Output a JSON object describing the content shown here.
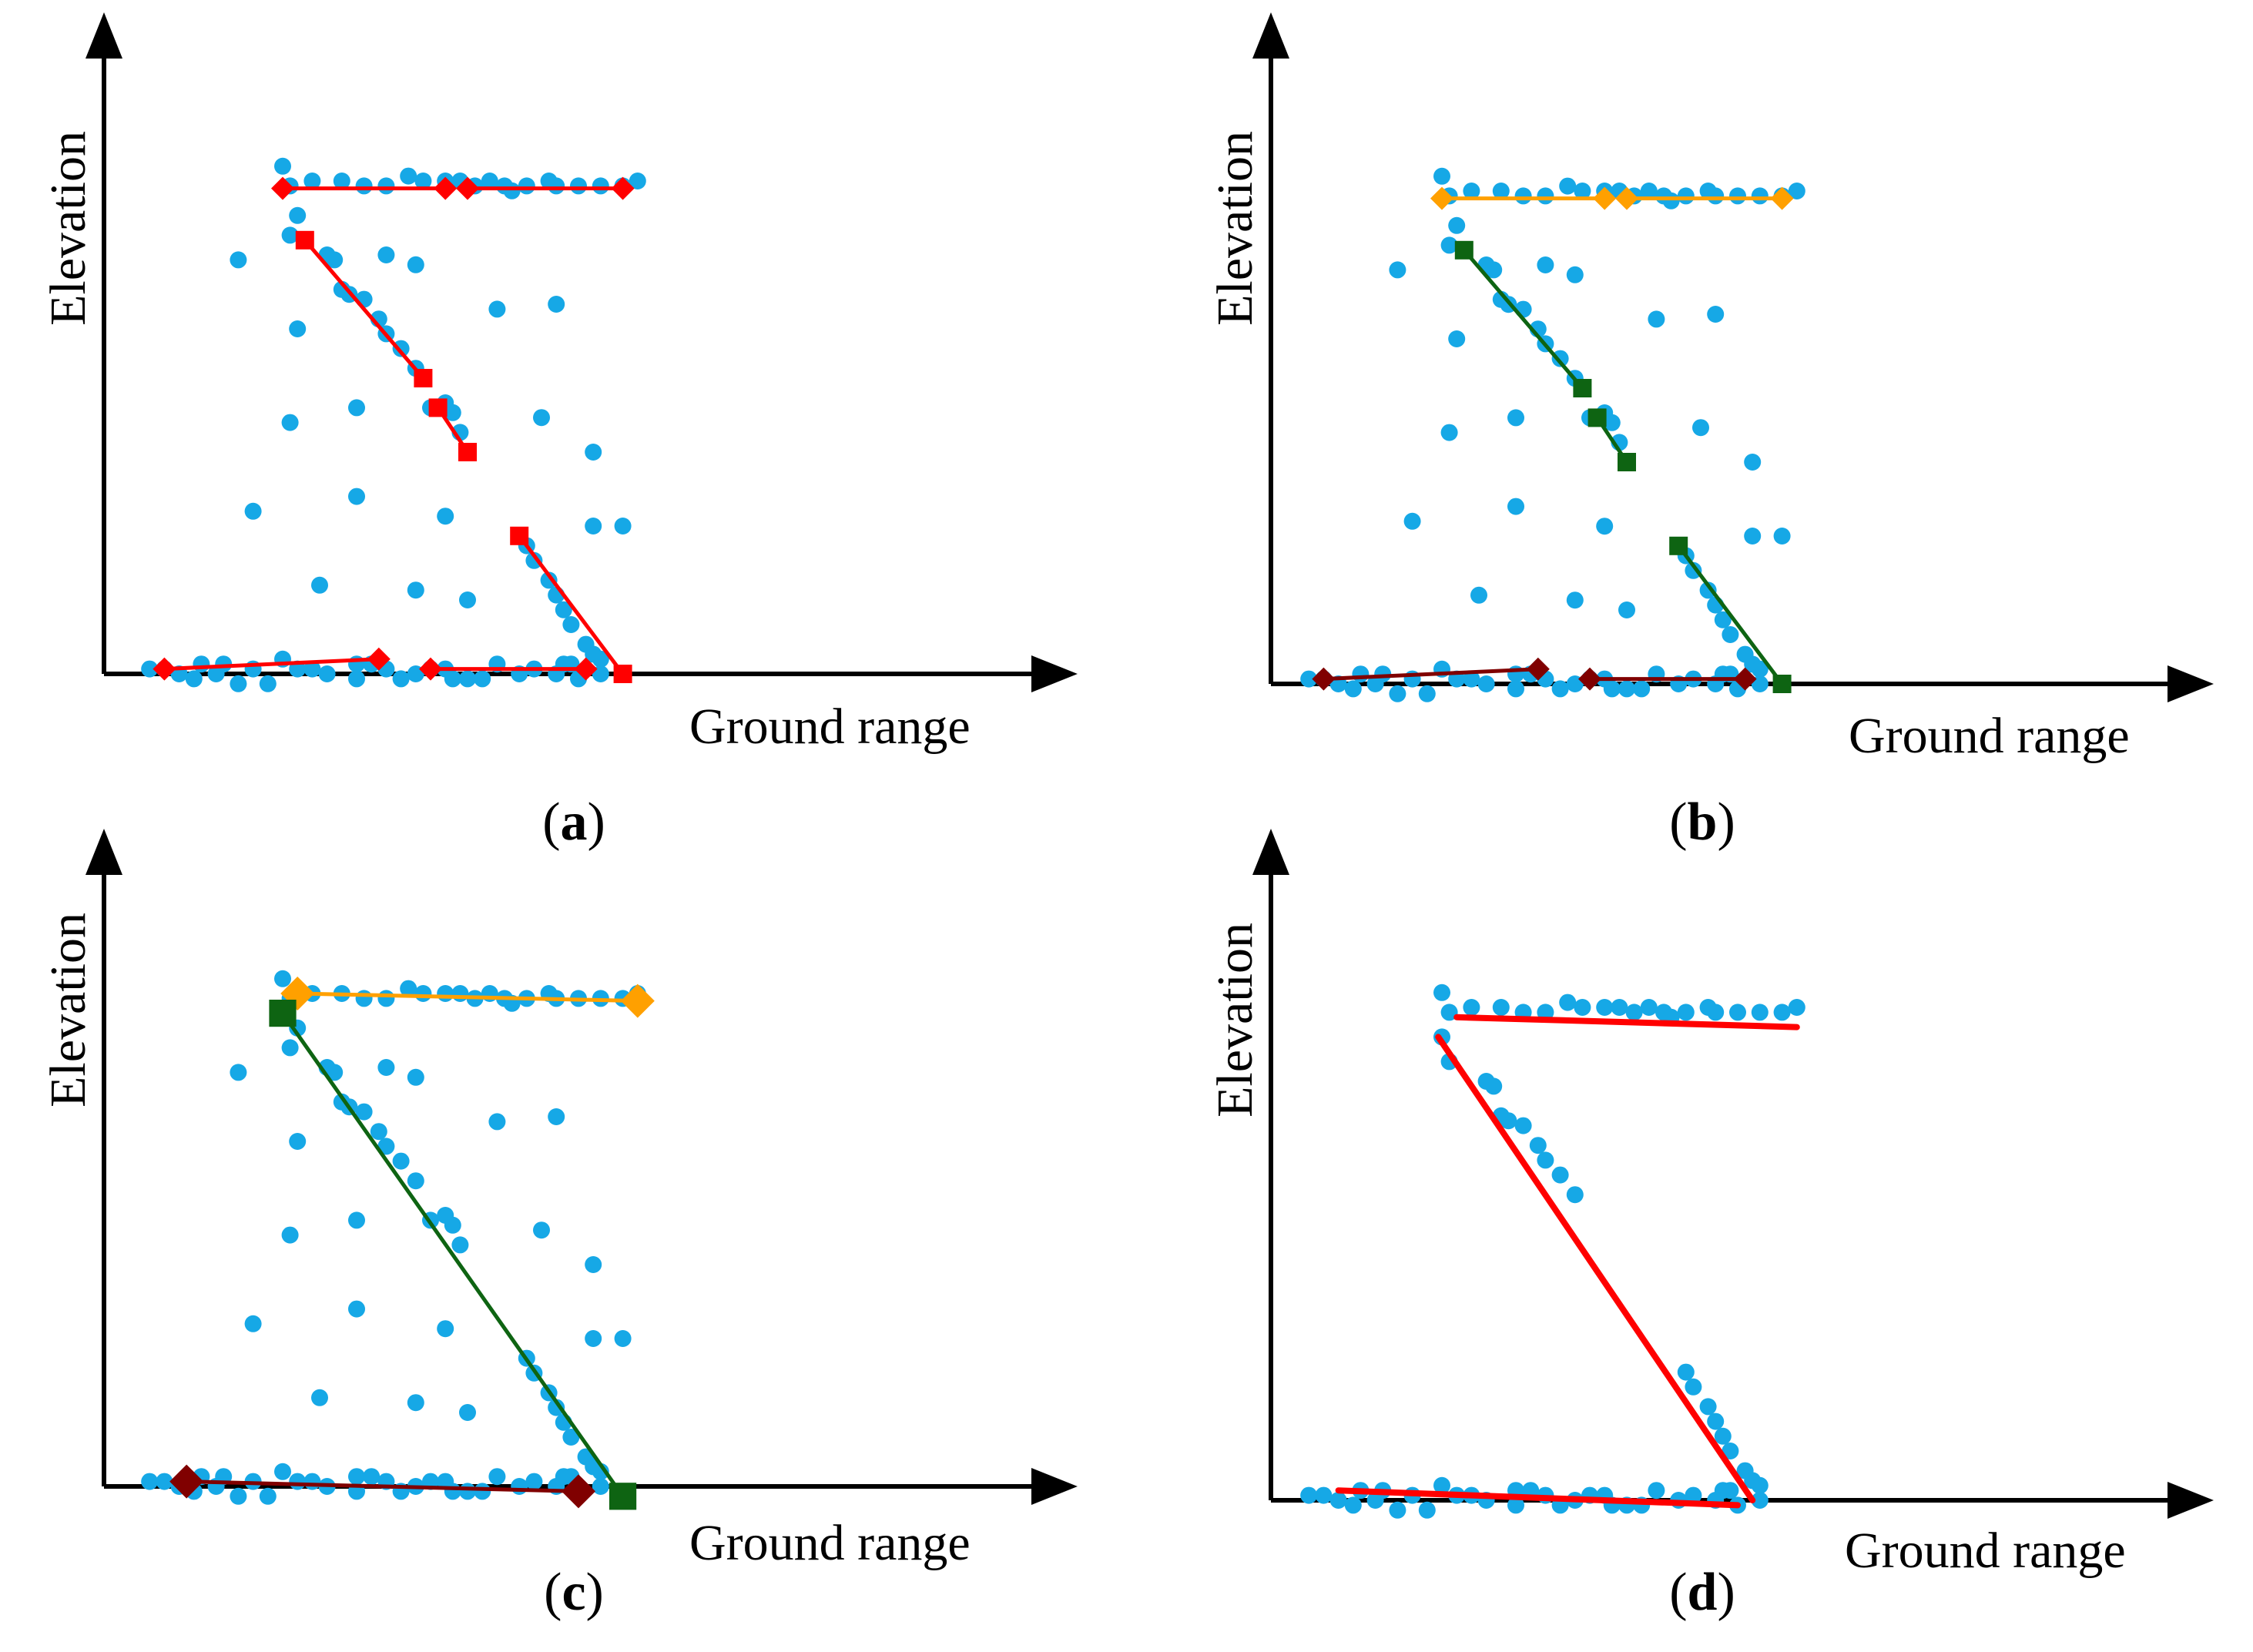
{
  "colors": {
    "points": "#16A8E6",
    "red": "#FF0000",
    "orange": "#FFA000",
    "green": "#0E6412",
    "dark_red": "#800000",
    "axis": "#000000"
  },
  "axes": {
    "x_label": "Ground range",
    "y_label": "Elevation"
  },
  "panels": [
    {
      "id": "a",
      "caption_open": "(",
      "caption_letter": "a",
      "caption_close": ")",
      "points_set": "full",
      "segments": [
        {
          "from": [
            0.2,
            0.985
          ],
          "to": [
            0.42,
            0.985
          ],
          "color": "red",
          "marker": "diamond",
          "size": "small"
        },
        {
          "from": [
            0.45,
            0.985
          ],
          "to": [
            0.66,
            0.985
          ],
          "color": "red",
          "marker": "diamond",
          "size": "small"
        },
        {
          "from": [
            0.23,
            0.88
          ],
          "to": [
            0.39,
            0.6
          ],
          "color": "red",
          "marker": "square",
          "size": "small"
        },
        {
          "from": [
            0.41,
            0.54
          ],
          "to": [
            0.45,
            0.45
          ],
          "color": "red",
          "marker": "square",
          "size": "small"
        },
        {
          "from": [
            0.52,
            0.28
          ],
          "to": [
            0.66,
            0.0
          ],
          "color": "red",
          "marker": "square",
          "size": "small"
        },
        {
          "from": [
            0.04,
            0.01
          ],
          "to": [
            0.33,
            0.03
          ],
          "color": "red",
          "marker": "diamond",
          "size": "small"
        },
        {
          "from": [
            0.4,
            0.01
          ],
          "to": [
            0.61,
            0.01
          ],
          "color": "red",
          "marker": "diamond",
          "size": "small"
        }
      ]
    },
    {
      "id": "b",
      "caption_open": "(",
      "caption_letter": "b",
      "caption_close": ")",
      "points_set": "full",
      "segments": [
        {
          "from": [
            0.2,
            0.985
          ],
          "to": [
            0.42,
            0.985
          ],
          "color": "orange",
          "marker": "diamond",
          "size": "small"
        },
        {
          "from": [
            0.45,
            0.985
          ],
          "to": [
            0.66,
            0.985
          ],
          "color": "orange",
          "marker": "diamond",
          "size": "small"
        },
        {
          "from": [
            0.23,
            0.88
          ],
          "to": [
            0.39,
            0.6
          ],
          "color": "green",
          "marker": "square",
          "size": "small"
        },
        {
          "from": [
            0.41,
            0.54
          ],
          "to": [
            0.45,
            0.45
          ],
          "color": "green",
          "marker": "square",
          "size": "small"
        },
        {
          "from": [
            0.52,
            0.28
          ],
          "to": [
            0.66,
            0.0
          ],
          "color": "green",
          "marker": "square",
          "size": "small"
        },
        {
          "from": [
            0.04,
            0.01
          ],
          "to": [
            0.33,
            0.03
          ],
          "color": "dark_red",
          "marker": "diamond",
          "size": "small"
        },
        {
          "from": [
            0.4,
            0.01
          ],
          "to": [
            0.61,
            0.01
          ],
          "color": "dark_red",
          "marker": "diamond",
          "size": "small"
        }
      ]
    },
    {
      "id": "c",
      "caption_open": "(",
      "caption_letter": "c",
      "caption_close": ")",
      "points_set": "full",
      "segments": [
        {
          "from": [
            0.22,
            1.0
          ],
          "to": [
            0.68,
            0.985
          ],
          "color": "orange",
          "marker": "diamond",
          "size": "large"
        },
        {
          "from": [
            0.2,
            0.96
          ],
          "to": [
            0.66,
            -0.02
          ],
          "color": "green",
          "marker": "square",
          "size": "large"
        },
        {
          "from": [
            0.07,
            0.01
          ],
          "to": [
            0.6,
            -0.01
          ],
          "color": "dark_red",
          "marker": "diamond",
          "size": "large"
        }
      ]
    },
    {
      "id": "d",
      "caption_open": "(",
      "caption_letter": "d",
      "caption_close": ")",
      "points_set": "reduced",
      "segments": [
        {
          "from": [
            0.22,
            0.98
          ],
          "to": [
            0.68,
            0.96
          ],
          "color": "red",
          "marker": "none",
          "size": "line"
        },
        {
          "from": [
            0.195,
            0.94
          ],
          "to": [
            0.62,
            0.0
          ],
          "color": "red",
          "marker": "none",
          "size": "line"
        },
        {
          "from": [
            0.06,
            0.02
          ],
          "to": [
            0.6,
            -0.01
          ],
          "color": "red",
          "marker": "none",
          "size": "line"
        }
      ]
    }
  ],
  "points_full": [
    [
      0.2,
      1.03
    ],
    [
      0.21,
      0.99
    ],
    [
      0.24,
      1.0
    ],
    [
      0.28,
      1.0
    ],
    [
      0.31,
      0.99
    ],
    [
      0.34,
      0.99
    ],
    [
      0.37,
      1.01
    ],
    [
      0.39,
      1.0
    ],
    [
      0.42,
      1.0
    ],
    [
      0.44,
      1.0
    ],
    [
      0.46,
      0.99
    ],
    [
      0.48,
      1.0
    ],
    [
      0.5,
      0.99
    ],
    [
      0.51,
      0.98
    ],
    [
      0.53,
      0.99
    ],
    [
      0.56,
      1.0
    ],
    [
      0.57,
      0.99
    ],
    [
      0.6,
      0.99
    ],
    [
      0.63,
      0.99
    ],
    [
      0.66,
      0.99
    ],
    [
      0.68,
      1.0
    ],
    [
      0.22,
      0.93
    ],
    [
      0.21,
      0.89
    ],
    [
      0.26,
      0.85
    ],
    [
      0.27,
      0.84
    ],
    [
      0.28,
      0.78
    ],
    [
      0.29,
      0.77
    ],
    [
      0.31,
      0.76
    ],
    [
      0.33,
      0.72
    ],
    [
      0.34,
      0.69
    ],
    [
      0.36,
      0.66
    ],
    [
      0.38,
      0.62
    ],
    [
      0.4,
      0.54
    ],
    [
      0.42,
      0.55
    ],
    [
      0.44,
      0.49
    ],
    [
      0.22,
      0.7
    ],
    [
      0.14,
      0.84
    ],
    [
      0.34,
      0.85
    ],
    [
      0.38,
      0.83
    ],
    [
      0.49,
      0.74
    ],
    [
      0.57,
      0.75
    ],
    [
      0.21,
      0.51
    ],
    [
      0.3,
      0.54
    ],
    [
      0.43,
      0.53
    ],
    [
      0.55,
      0.52
    ],
    [
      0.62,
      0.45
    ],
    [
      0.16,
      0.33
    ],
    [
      0.3,
      0.36
    ],
    [
      0.42,
      0.32
    ],
    [
      0.62,
      0.3
    ],
    [
      0.66,
      0.3
    ],
    [
      0.25,
      0.18
    ],
    [
      0.38,
      0.17
    ],
    [
      0.45,
      0.15
    ],
    [
      0.53,
      0.26
    ],
    [
      0.54,
      0.23
    ],
    [
      0.56,
      0.19
    ],
    [
      0.57,
      0.16
    ],
    [
      0.58,
      0.13
    ],
    [
      0.59,
      0.1
    ],
    [
      0.61,
      0.06
    ],
    [
      0.62,
      0.04
    ],
    [
      0.63,
      0.03
    ],
    [
      0.02,
      0.01
    ],
    [
      0.04,
      0.01
    ],
    [
      0.06,
      0.0
    ],
    [
      0.08,
      -0.01
    ],
    [
      0.09,
      0.02
    ],
    [
      0.11,
      0.0
    ],
    [
      0.12,
      0.02
    ],
    [
      0.14,
      -0.02
    ],
    [
      0.16,
      0.01
    ],
    [
      0.18,
      -0.02
    ],
    [
      0.2,
      0.03
    ],
    [
      0.22,
      0.01
    ],
    [
      0.24,
      0.01
    ],
    [
      0.26,
      0.0
    ],
    [
      0.3,
      0.02
    ],
    [
      0.3,
      -0.01
    ],
    [
      0.32,
      0.02
    ],
    [
      0.34,
      0.01
    ],
    [
      0.36,
      -0.01
    ],
    [
      0.38,
      0.0
    ],
    [
      0.4,
      0.01
    ],
    [
      0.42,
      0.01
    ],
    [
      0.43,
      -0.01
    ],
    [
      0.45,
      -0.01
    ],
    [
      0.47,
      -0.01
    ],
    [
      0.49,
      0.02
    ],
    [
      0.52,
      0.0
    ],
    [
      0.54,
      0.01
    ],
    [
      0.57,
      0.0
    ],
    [
      0.58,
      0.02
    ],
    [
      0.59,
      0.02
    ],
    [
      0.6,
      -0.01
    ],
    [
      0.63,
      0.0
    ]
  ],
  "points_reduced": [
    [
      0.2,
      1.03
    ],
    [
      0.21,
      0.99
    ],
    [
      0.24,
      1.0
    ],
    [
      0.28,
      1.0
    ],
    [
      0.31,
      0.99
    ],
    [
      0.34,
      0.99
    ],
    [
      0.37,
      1.01
    ],
    [
      0.39,
      1.0
    ],
    [
      0.42,
      1.0
    ],
    [
      0.44,
      1.0
    ],
    [
      0.46,
      0.99
    ],
    [
      0.48,
      1.0
    ],
    [
      0.5,
      0.99
    ],
    [
      0.51,
      0.98
    ],
    [
      0.53,
      0.99
    ],
    [
      0.56,
      1.0
    ],
    [
      0.57,
      0.99
    ],
    [
      0.6,
      0.99
    ],
    [
      0.63,
      0.99
    ],
    [
      0.66,
      0.99
    ],
    [
      0.68,
      1.0
    ],
    [
      0.2,
      0.94
    ],
    [
      0.21,
      0.89
    ],
    [
      0.26,
      0.85
    ],
    [
      0.27,
      0.84
    ],
    [
      0.28,
      0.78
    ],
    [
      0.29,
      0.77
    ],
    [
      0.31,
      0.76
    ],
    [
      0.33,
      0.72
    ],
    [
      0.34,
      0.69
    ],
    [
      0.36,
      0.66
    ],
    [
      0.38,
      0.62
    ],
    [
      0.53,
      0.26
    ],
    [
      0.54,
      0.23
    ],
    [
      0.56,
      0.19
    ],
    [
      0.57,
      0.16
    ],
    [
      0.58,
      0.13
    ],
    [
      0.59,
      0.1
    ],
    [
      0.61,
      0.06
    ],
    [
      0.62,
      0.04
    ],
    [
      0.63,
      0.03
    ],
    [
      0.02,
      0.01
    ],
    [
      0.04,
      0.01
    ],
    [
      0.06,
      0.0
    ],
    [
      0.08,
      -0.01
    ],
    [
      0.09,
      0.02
    ],
    [
      0.11,
      0.0
    ],
    [
      0.12,
      0.02
    ],
    [
      0.14,
      -0.02
    ],
    [
      0.16,
      0.01
    ],
    [
      0.18,
      -0.02
    ],
    [
      0.2,
      0.03
    ],
    [
      0.22,
      0.01
    ],
    [
      0.24,
      0.01
    ],
    [
      0.26,
      0.0
    ],
    [
      0.3,
      0.02
    ],
    [
      0.3,
      -0.01
    ],
    [
      0.32,
      0.02
    ],
    [
      0.34,
      0.01
    ],
    [
      0.36,
      -0.01
    ],
    [
      0.38,
      0.0
    ],
    [
      0.4,
      0.01
    ],
    [
      0.42,
      0.01
    ],
    [
      0.43,
      -0.01
    ],
    [
      0.45,
      -0.01
    ],
    [
      0.47,
      -0.01
    ],
    [
      0.49,
      0.02
    ],
    [
      0.52,
      0.0
    ],
    [
      0.54,
      0.01
    ],
    [
      0.57,
      0.0
    ],
    [
      0.58,
      0.02
    ],
    [
      0.59,
      0.02
    ],
    [
      0.6,
      -0.01
    ],
    [
      0.63,
      0.0
    ]
  ]
}
